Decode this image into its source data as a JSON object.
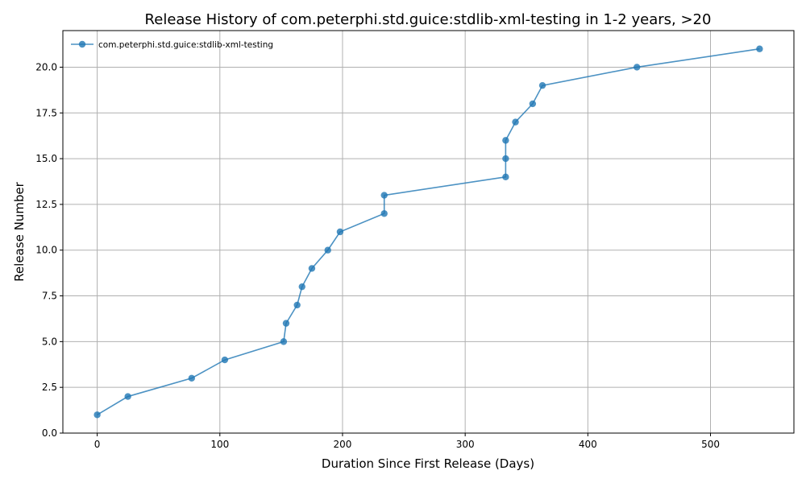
{
  "chart_data": {
    "type": "line",
    "title": "Release History of com.peterphi.std.guice:stdlib-xml-testing in 1-2 years, >20",
    "xlabel": "Duration Since First Release (Days)",
    "ylabel": "Release Number",
    "xlim": [
      -28,
      568
    ],
    "ylim": [
      0,
      22
    ],
    "xticks": [
      0,
      100,
      200,
      300,
      400,
      500
    ],
    "xtick_labels": [
      "0",
      "100",
      "200",
      "300",
      "400",
      "500"
    ],
    "yticks": [
      0,
      2.5,
      5,
      7.5,
      10,
      12.5,
      15,
      17.5,
      20
    ],
    "ytick_labels": [
      "0.0",
      "2.5",
      "5.0",
      "7.5",
      "10.0",
      "12.5",
      "15.0",
      "17.5",
      "20.0"
    ],
    "grid": true,
    "legend_position": "top-left",
    "series": [
      {
        "name": "com.peterphi.std.guice:stdlib-xml-testing",
        "color": "#1f77b4",
        "x": [
          0,
          25,
          77,
          104,
          152,
          154,
          163,
          167,
          175,
          188,
          198,
          234,
          234,
          333,
          333,
          333,
          341,
          355,
          363,
          440,
          540
        ],
        "y": [
          1,
          2,
          3,
          4,
          5,
          6,
          7,
          8,
          9,
          10,
          11,
          12,
          13,
          14,
          15,
          16,
          17,
          18,
          19,
          20,
          21
        ]
      }
    ]
  }
}
